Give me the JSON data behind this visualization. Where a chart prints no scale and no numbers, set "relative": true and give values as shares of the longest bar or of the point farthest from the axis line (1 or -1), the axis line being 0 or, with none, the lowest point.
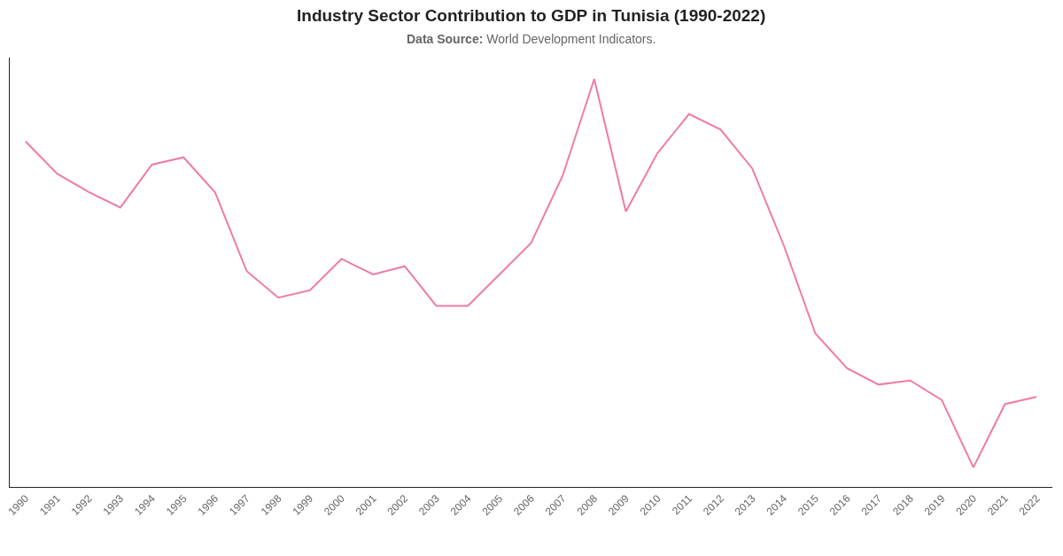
{
  "chart_data": {
    "type": "line",
    "title": "Industry Sector Contribution to GDP in Tunisia (1990-2022)",
    "subtitle": "Data Source: World Development Indicators.",
    "categories": [
      "1990",
      "1991",
      "1992",
      "1993",
      "1994",
      "1995",
      "1996",
      "1997",
      "1998",
      "1999",
      "2000",
      "2001",
      "2002",
      "2003",
      "2004",
      "2005",
      "2006",
      "2007",
      "2008",
      "2009",
      "2010",
      "2011",
      "2012",
      "2013",
      "2014",
      "2015",
      "2016",
      "2017",
      "2018",
      "2019",
      "2020",
      "2021",
      "2022"
    ],
    "relative": true,
    "series": [
      {
        "color": "#ef7ba6",
        "values": [
          0.847,
          0.768,
          0.723,
          0.685,
          0.79,
          0.808,
          0.722,
          0.529,
          0.464,
          0.482,
          0.559,
          0.521,
          0.541,
          0.444,
          0.444,
          0.521,
          0.598,
          0.763,
          1,
          0.675,
          0.818,
          0.914,
          0.876,
          0.781,
          0.592,
          0.376,
          0.291,
          0.251,
          0.261,
          0.213,
          0.048,
          0.203,
          0.221
        ]
      }
    ]
  }
}
